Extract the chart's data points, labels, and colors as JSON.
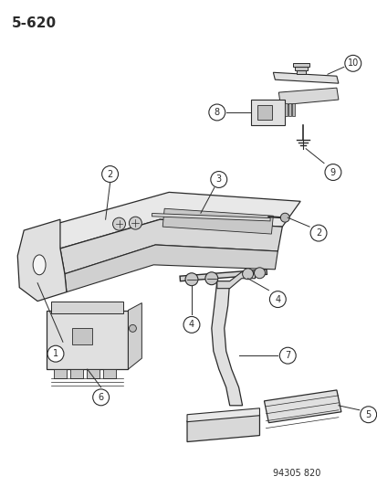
{
  "title": "5-620",
  "background_color": "#ffffff",
  "line_color": "#2a2a2a",
  "catalog_number": "94305 820",
  "fig_w": 4.14,
  "fig_h": 5.33,
  "dpi": 100
}
